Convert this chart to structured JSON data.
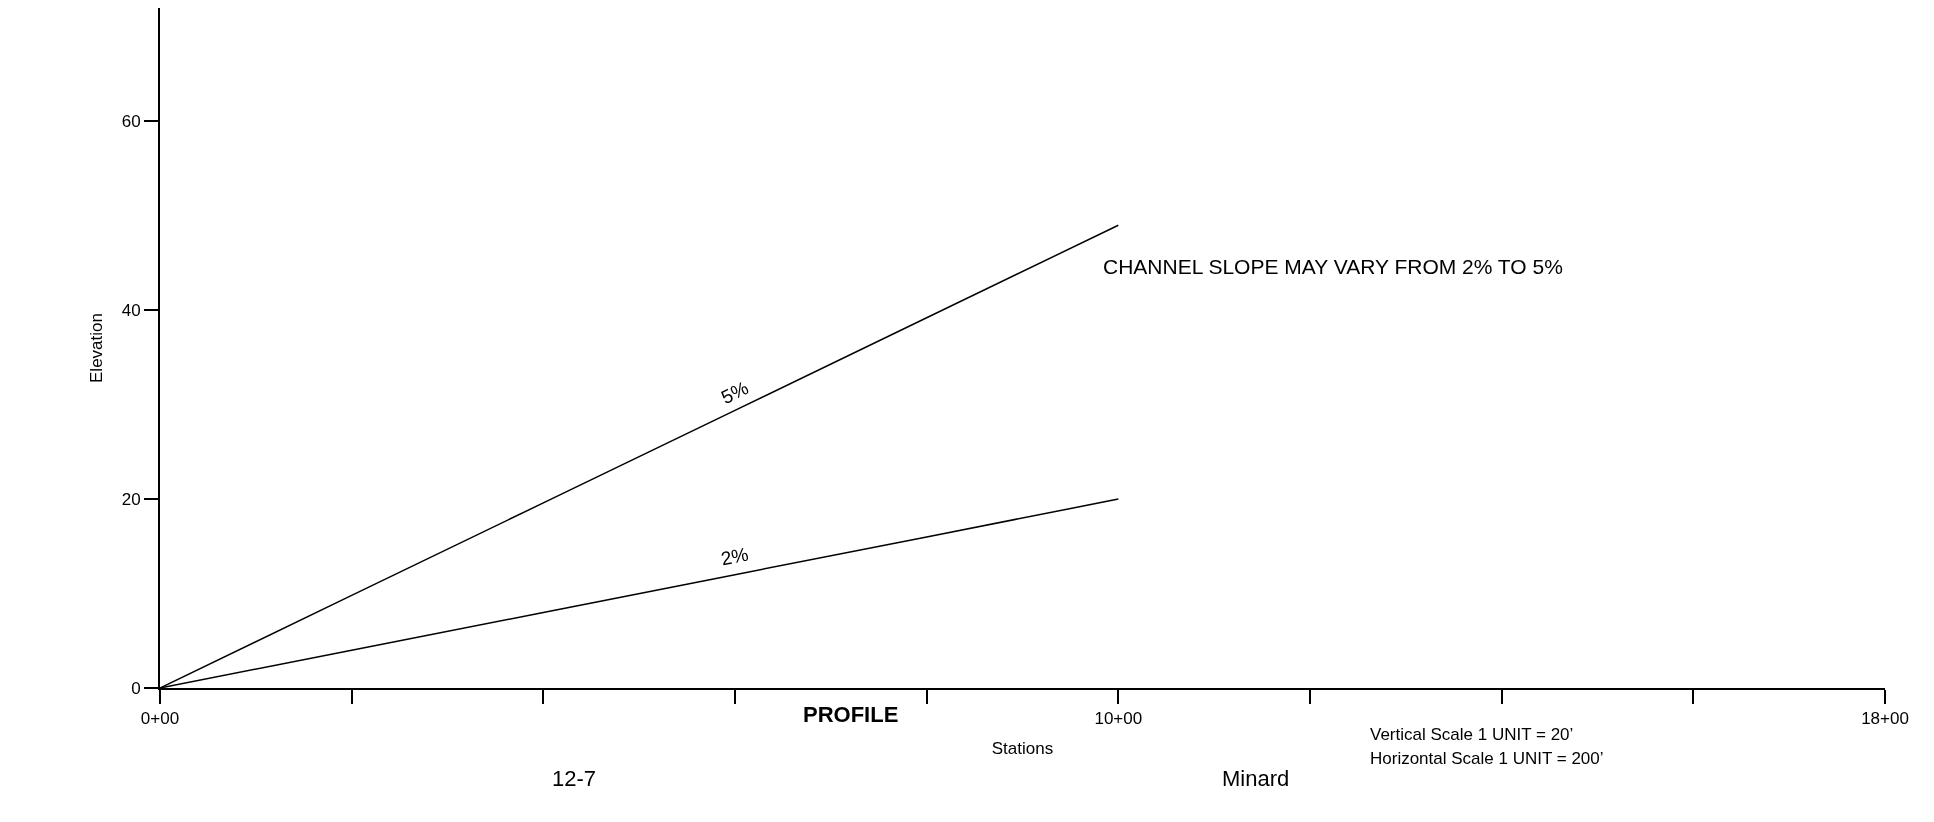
{
  "chart_data": {
    "type": "line",
    "title": "PROFILE",
    "xlabel": "Stations",
    "ylabel": "Elevation",
    "ylim": [
      0,
      72
    ],
    "categories": [
      "0+00",
      null,
      null,
      null,
      null,
      "10+00",
      null,
      null,
      null,
      "18+00"
    ],
    "yticks": [
      0,
      20,
      40,
      60
    ],
    "series": [
      {
        "name": "5%",
        "color": "#000000",
        "values": [
          0,
          9.8,
          19.6,
          29.4,
          39.2,
          49,
          null,
          null,
          null,
          null
        ]
      },
      {
        "name": "2%",
        "color": "#000000",
        "values": [
          0,
          4,
          8,
          12,
          16,
          20,
          null,
          null,
          null,
          null
        ]
      }
    ],
    "annotations": [
      "CHANNEL SLOPE MAY VARY FROM 2% TO 5%",
      "12-7",
      "Minard",
      "Vertical Scale 1 UNIT = 20’",
      "Horizontal Scale 1 UNIT = 200’"
    ],
    "grid": false,
    "legend": false,
    "marker": "none",
    "line_style": "solid"
  }
}
